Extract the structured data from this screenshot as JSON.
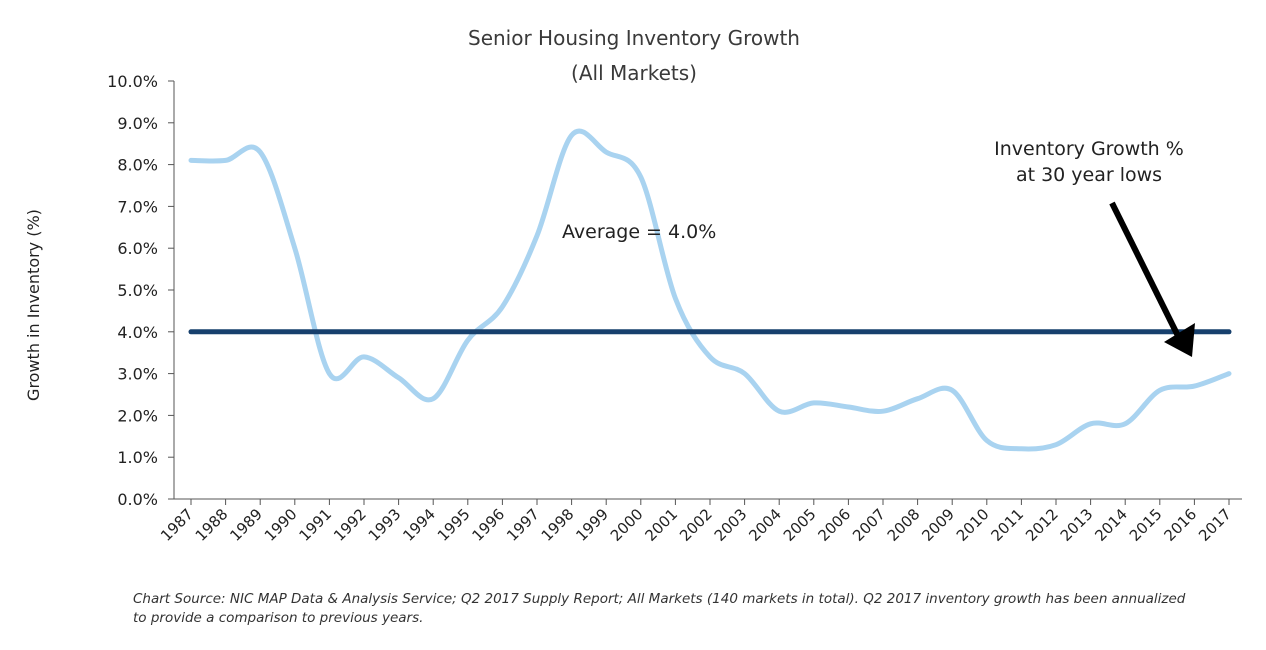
{
  "chart_data": {
    "type": "line",
    "title": "Senior Housing Inventory Growth",
    "subtitle": "(All Markets)",
    "xlabel": "",
    "ylabel": "Growth in Inventory (%)",
    "ylim": [
      0,
      10
    ],
    "y_ticks": [
      "0.0%",
      "1.0%",
      "2.0%",
      "3.0%",
      "4.0%",
      "5.0%",
      "6.0%",
      "7.0%",
      "8.0%",
      "9.0%",
      "10.0%"
    ],
    "categories": [
      "1987",
      "1988",
      "1989",
      "1990",
      "1991",
      "1992",
      "1993",
      "1994",
      "1995",
      "1996",
      "1997",
      "1998",
      "1999",
      "2000",
      "2001",
      "2002",
      "2003",
      "2004",
      "2005",
      "2006",
      "2007",
      "2008",
      "2009",
      "2010",
      "2011",
      "2012",
      "2013",
      "2014",
      "2015",
      "2016",
      "2017"
    ],
    "grid": false,
    "series": [
      {
        "name": "",
        "color": "#a9d3f0",
        "values": [
          8.1,
          8.1,
          8.3,
          6.0,
          3.0,
          3.4,
          2.9,
          2.4,
          3.8,
          4.6,
          6.3,
          8.7,
          8.3,
          7.7,
          4.8,
          3.4,
          3.0,
          2.1,
          2.3,
          2.2,
          2.1,
          2.4,
          2.6,
          1.4,
          1.2,
          1.3,
          1.8,
          1.8,
          2.6,
          2.7,
          3.0
        ]
      },
      {
        "name": "",
        "color": "#17406d",
        "values": [
          4.0,
          4.0,
          4.0,
          4.0,
          4.0,
          4.0,
          4.0,
          4.0,
          4.0,
          4.0,
          4.0,
          4.0,
          4.0,
          4.0,
          4.0,
          4.0,
          4.0,
          4.0,
          4.0,
          4.0,
          4.0,
          4.0,
          4.0,
          4.0,
          4.0,
          4.0,
          4.0,
          4.0,
          4.0,
          4.0,
          4.0
        ]
      }
    ],
    "annotations": {
      "average": "Average = 4.0%",
      "lows_line1": "Inventory Growth %",
      "lows_line2": "at 30 year lows"
    }
  },
  "source_note": "Chart Source: NIC MAP Data & Analysis Service; Q2 2017 Supply Report; All Markets (140 markets in total). Q2 2017 inventory growth has been annualized to provide a comparison to previous years."
}
